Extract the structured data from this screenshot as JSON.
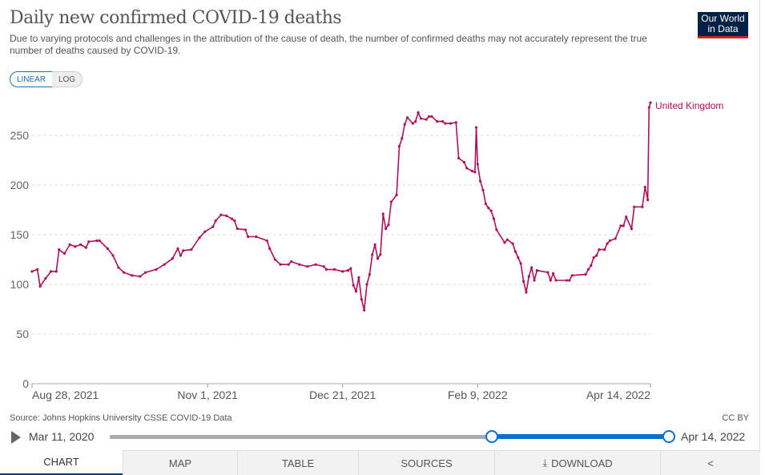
{
  "header": {
    "title": "Daily new confirmed COVID-19 deaths",
    "subtitle": "Due to varying protocols and challenges in the attribution of the cause of death, the number of confirmed deaths may not accurately represent the true number of deaths caused by COVID-19.",
    "logo": "Our World in Data"
  },
  "scale_toggle": {
    "linear": "LINEAR",
    "log": "LOG",
    "selected": "LINEAR"
  },
  "footer": {
    "source": "Source: Johns Hopkins University CSSE COVID-19 Data",
    "license": "CC BY"
  },
  "timeline": {
    "start_label": "Mar 11, 2020",
    "end_label": "Apr 14, 2022",
    "selected_start_fraction": 0.7,
    "selected_end_fraction": 1.0
  },
  "tabs": [
    {
      "label": "CHART",
      "active": true
    },
    {
      "label": "MAP"
    },
    {
      "label": "TABLE"
    },
    {
      "label": "SOURCES"
    },
    {
      "label": "DOWNLOAD",
      "icon": "download-icon"
    },
    {
      "label": "",
      "icon": "share-icon"
    }
  ],
  "colors": {
    "series": "#b0105a",
    "accent": "#0a6ece"
  },
  "chart_data": {
    "type": "line",
    "title": "Daily new confirmed COVID-19 deaths",
    "x_unit": "days since 2021-08-28",
    "xlim": [
      0,
      229
    ],
    "ylim": [
      0,
      290
    ],
    "grid": true,
    "yticks": [
      0,
      50,
      100,
      150,
      200,
      250
    ],
    "xticks": [
      {
        "day": 0,
        "label": "Aug 28, 2021"
      },
      {
        "day": 65,
        "label": "Nov 1, 2021"
      },
      {
        "day": 115,
        "label": "Dec 21, 2021"
      },
      {
        "day": 165,
        "label": "Feb 9, 2022"
      },
      {
        "day": 229,
        "label": "Apr 14, 2022"
      }
    ],
    "series": [
      {
        "name": "United Kingdom",
        "points": [
          [
            0,
            113
          ],
          [
            2,
            115
          ],
          [
            3,
            98
          ],
          [
            5,
            106
          ],
          [
            7,
            113
          ],
          [
            9,
            113
          ],
          [
            10,
            135
          ],
          [
            12,
            131
          ],
          [
            14,
            140
          ],
          [
            16,
            138
          ],
          [
            18,
            140
          ],
          [
            20,
            137
          ],
          [
            21,
            143
          ],
          [
            24,
            144
          ],
          [
            25,
            144
          ],
          [
            28,
            136
          ],
          [
            30,
            129
          ],
          [
            32,
            117
          ],
          [
            34,
            112
          ],
          [
            37,
            109
          ],
          [
            40,
            108
          ],
          [
            42,
            112
          ],
          [
            46,
            115
          ],
          [
            49,
            120
          ],
          [
            52,
            126
          ],
          [
            54,
            136
          ],
          [
            55,
            129
          ],
          [
            56,
            134
          ],
          [
            59,
            135
          ],
          [
            62,
            147
          ],
          [
            64,
            153
          ],
          [
            67,
            158
          ],
          [
            68,
            164
          ],
          [
            70,
            170
          ],
          [
            72,
            169
          ],
          [
            74,
            166
          ],
          [
            75,
            164
          ],
          [
            76,
            156
          ],
          [
            79,
            155
          ],
          [
            80,
            148
          ],
          [
            83,
            148
          ],
          [
            87,
            144
          ],
          [
            88,
            136
          ],
          [
            90,
            125
          ],
          [
            92,
            120
          ],
          [
            95,
            120
          ],
          [
            96,
            123
          ],
          [
            99,
            120
          ],
          [
            102,
            118
          ],
          [
            105,
            120
          ],
          [
            108,
            118
          ],
          [
            109,
            115
          ],
          [
            112,
            115
          ],
          [
            115,
            113
          ],
          [
            117,
            114
          ],
          [
            118,
            116
          ],
          [
            119,
            99
          ],
          [
            120,
            93
          ],
          [
            121,
            107
          ],
          [
            122,
            85
          ],
          [
            123,
            74
          ],
          [
            124,
            100
          ],
          [
            125,
            110
          ],
          [
            126,
            130
          ],
          [
            127,
            140
          ],
          [
            128,
            126
          ],
          [
            129,
            130
          ],
          [
            130,
            171
          ],
          [
            131,
            156
          ],
          [
            132,
            160
          ],
          [
            133,
            183
          ],
          [
            135,
            190
          ],
          [
            136,
            239
          ],
          [
            137,
            247
          ],
          [
            138,
            261
          ],
          [
            139,
            268
          ],
          [
            141,
            262
          ],
          [
            142,
            264
          ],
          [
            143,
            273
          ],
          [
            144,
            267
          ],
          [
            146,
            266
          ],
          [
            147,
            269
          ],
          [
            148,
            269
          ],
          [
            150,
            264
          ],
          [
            152,
            264
          ],
          [
            153,
            262
          ],
          [
            155,
            262
          ],
          [
            157,
            263
          ],
          [
            158,
            227
          ],
          [
            160,
            223
          ],
          [
            161,
            217
          ],
          [
            163,
            214
          ],
          [
            164,
            213
          ],
          [
            164.5,
            258
          ],
          [
            165,
            221
          ],
          [
            166,
            204
          ],
          [
            167,
            195
          ],
          [
            168,
            181
          ],
          [
            169,
            177
          ],
          [
            170,
            174
          ],
          [
            171,
            166
          ],
          [
            172,
            155
          ],
          [
            175,
            142
          ],
          [
            176,
            145
          ],
          [
            178,
            141
          ],
          [
            179,
            133
          ],
          [
            180,
            127
          ],
          [
            181,
            121
          ],
          [
            182,
            103
          ],
          [
            183,
            92
          ],
          [
            184,
            108
          ],
          [
            185,
            117
          ],
          [
            186,
            104
          ],
          [
            187,
            114
          ],
          [
            191,
            112
          ],
          [
            192,
            104
          ],
          [
            193,
            111
          ],
          [
            194,
            104
          ],
          [
            198,
            104
          ],
          [
            199,
            104
          ],
          [
            200,
            109
          ],
          [
            205,
            110
          ],
          [
            206,
            115
          ],
          [
            207,
            119
          ],
          [
            208,
            127
          ],
          [
            209,
            129
          ],
          [
            210,
            135
          ],
          [
            212,
            135
          ],
          [
            213,
            141
          ],
          [
            214,
            144
          ],
          [
            216,
            146
          ],
          [
            218,
            159
          ],
          [
            219,
            159
          ],
          [
            220,
            168
          ],
          [
            222,
            156
          ],
          [
            223,
            178
          ],
          [
            226,
            178
          ],
          [
            227,
            198
          ],
          [
            228,
            185
          ],
          [
            228.5,
            278
          ],
          [
            229,
            283
          ]
        ]
      }
    ]
  }
}
